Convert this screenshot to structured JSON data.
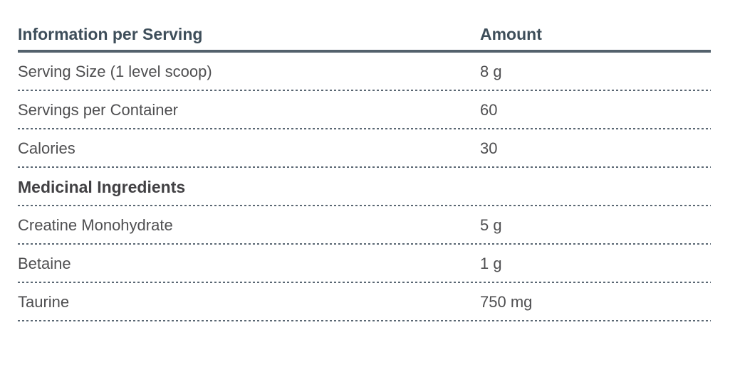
{
  "table": {
    "header": {
      "label": "Information per Serving",
      "amount": "Amount"
    },
    "rows": [
      {
        "label": "Serving Size (1 level scoop)",
        "amount": "8 g"
      },
      {
        "label": "Servings per Container",
        "amount": "60"
      },
      {
        "label": "Calories",
        "amount": "30"
      },
      {
        "label": "Medicinal Ingredients",
        "amount": ""
      },
      {
        "label": "Creatine Monohydrate",
        "amount": "5 g"
      },
      {
        "label": "Betaine",
        "amount": "1 g"
      },
      {
        "label": "Taurine",
        "amount": "750 mg"
      }
    ]
  },
  "colors": {
    "header_text": "#3e4e5a",
    "section_text": "#414043",
    "body_text": "#4f4f51",
    "header_rule": "#53616c",
    "dotted_rule": "#5a6773",
    "background": "#ffffff"
  }
}
